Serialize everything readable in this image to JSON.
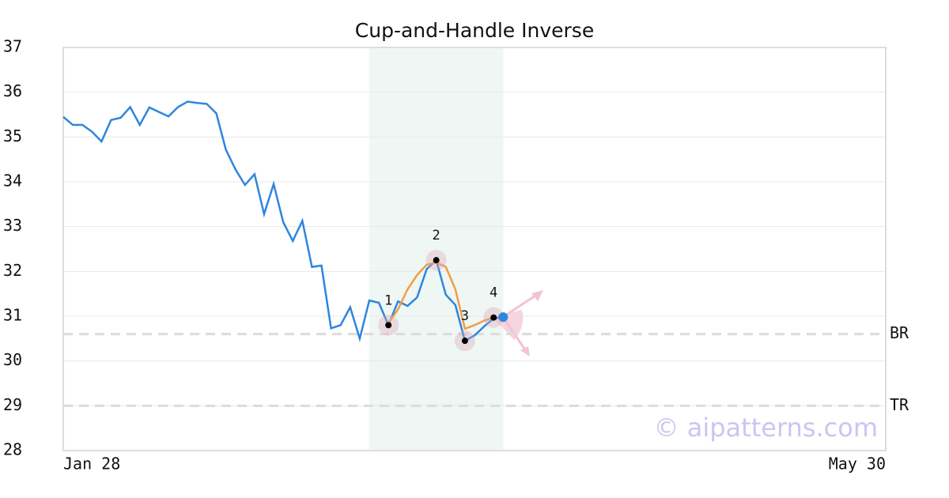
{
  "chart_data": {
    "type": "line",
    "title": "Cup-and-Handle Inverse",
    "xlim": [
      0,
      86
    ],
    "xticks": [
      {
        "value": 0,
        "label": "Jan 28"
      },
      {
        "value": 86,
        "label": "May 30"
      }
    ],
    "ylim": [
      28,
      37
    ],
    "yticks": [
      28,
      29,
      30,
      31,
      32,
      33,
      34,
      35,
      36,
      37
    ],
    "grid": true,
    "highlight": [
      32,
      46
    ],
    "series": [
      {
        "color": "#2e86de",
        "x": [
          0,
          1,
          2,
          3,
          4,
          5,
          6,
          7,
          8,
          9,
          10,
          11,
          12,
          13,
          14,
          15,
          16,
          17,
          18,
          19,
          20,
          21,
          22,
          23,
          24,
          25,
          26,
          27,
          28,
          29,
          30,
          31,
          32,
          33,
          34,
          35,
          36,
          37,
          38,
          39,
          40,
          41,
          42,
          43,
          44,
          45,
          46
        ],
        "values": [
          35.45,
          35.27,
          35.27,
          35.12,
          34.9,
          35.38,
          35.43,
          35.67,
          35.27,
          35.66,
          35.56,
          35.46,
          35.67,
          35.79,
          35.76,
          35.74,
          35.53,
          34.72,
          34.28,
          33.93,
          34.17,
          33.28,
          33.95,
          33.1,
          32.68,
          33.13,
          32.1,
          32.13,
          30.73,
          30.8,
          31.2,
          30.5,
          31.35,
          31.3,
          30.8,
          31.33,
          31.23,
          31.42,
          32.05,
          32.25,
          31.48,
          31.25,
          30.45,
          30.57,
          30.77,
          30.95,
          30.98
        ]
      },
      {
        "color": "#f39c45",
        "x": [
          34,
          35,
          36,
          37,
          38,
          39,
          40,
          41,
          42,
          43,
          44,
          45
        ],
        "values": [
          30.85,
          31.15,
          31.6,
          31.92,
          32.15,
          32.2,
          32.1,
          31.6,
          30.72,
          30.8,
          30.9,
          30.97
        ]
      }
    ],
    "pivots": [
      {
        "label": "1",
        "x": 34,
        "value": 30.8
      },
      {
        "label": "2",
        "x": 39,
        "value": 32.25
      },
      {
        "label": "3",
        "x": 42,
        "value": 30.45
      },
      {
        "label": "4",
        "x": 45,
        "value": 30.97
      }
    ],
    "levels": [
      {
        "label": "BR",
        "value": 30.6
      },
      {
        "label": "TR",
        "value": 29.0
      }
    ],
    "watermark": "© aipatterns.com"
  }
}
